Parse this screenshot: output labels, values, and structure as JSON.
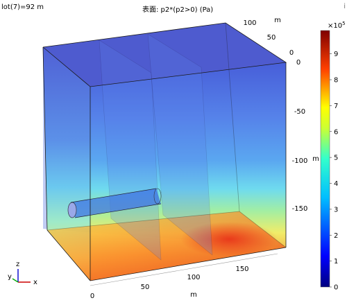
{
  "header": {
    "plot_parameter": "lot(7)=92 m",
    "title": "表面: p2*(p2>0) (Pa)",
    "corner_icon": "i"
  },
  "axes": {
    "x_unit": "m",
    "y_unit": "m",
    "z_unit": "m",
    "x_ticks": [
      "0",
      "50",
      "100",
      "150"
    ],
    "y_ticks": [
      "0",
      "50",
      "100"
    ],
    "z_ticks": [
      "0",
      "-50",
      "-100",
      "-150"
    ]
  },
  "colorbar": {
    "exponent_label": "×10",
    "exponent_power": "5",
    "ticks": [
      "0",
      "1",
      "2",
      "3",
      "4",
      "5",
      "6",
      "7",
      "8",
      "9"
    ],
    "min": 0,
    "max": 9.9,
    "colors": {
      "top": "#7f0000",
      "high": "#ff3300",
      "mid_high": "#ffff00",
      "mid": "#33ffcc",
      "mid_low": "#0088ff",
      "bottom": "#000080"
    }
  },
  "triad": {
    "x_label": "x",
    "y_label": "y",
    "z_label": "z",
    "x_color": "#cc0000",
    "y_color": "#00aa00",
    "z_color": "#0000cc"
  }
}
